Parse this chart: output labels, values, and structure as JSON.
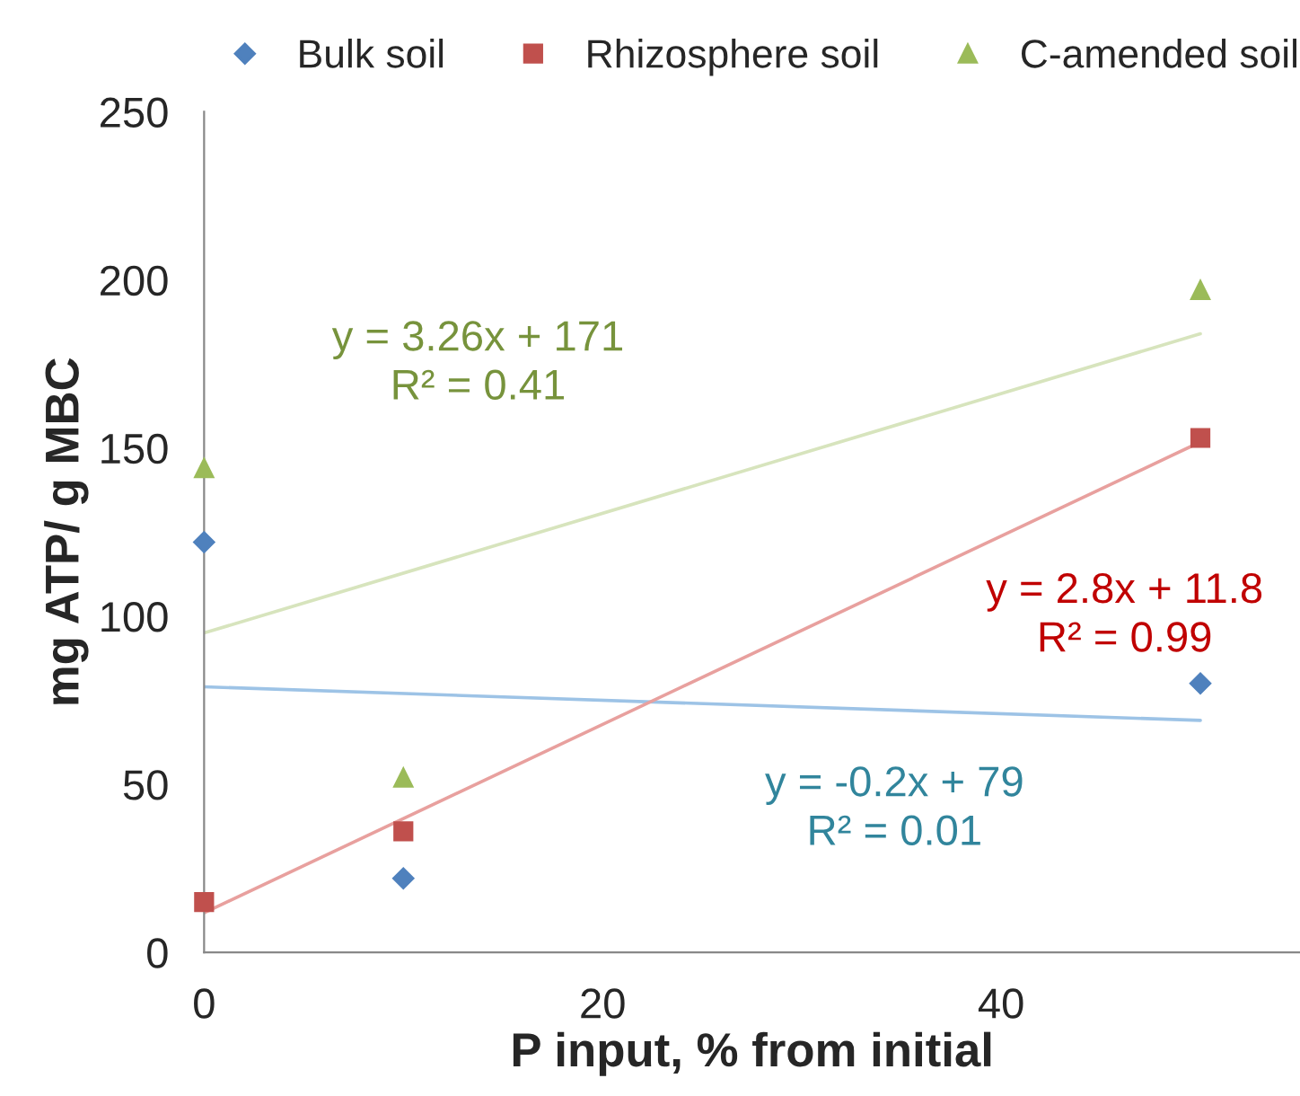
{
  "chart_data": {
    "type": "scatter",
    "xlabel": "P input, % from initial",
    "ylabel": "mg ATP/ g MBC",
    "xlim": [
      0,
      55
    ],
    "xticks": [
      0,
      20,
      40
    ],
    "ylim": [
      0,
      250
    ],
    "yticks": [
      0,
      50,
      100,
      150,
      200,
      250
    ],
    "grid": false,
    "legend": "top",
    "series": [
      {
        "name": "Bulk soil",
        "color": "#4f81bd",
        "marker": "diamond",
        "x": [
          0,
          10,
          50
        ],
        "values": [
          122,
          22,
          80
        ]
      },
      {
        "name": "Rhizosphere soil",
        "color": "#c0504d",
        "marker": "square",
        "x": [
          0,
          10,
          50
        ],
        "values": [
          15,
          36,
          153
        ]
      },
      {
        "name": "C-amended soil",
        "color": "#9bbb59",
        "marker": "triangle",
        "x": [
          0,
          10,
          50
        ],
        "values": [
          144,
          52,
          197
        ]
      },
      {
        "type": "line",
        "color": "#9dc3e6",
        "marker": "none",
        "x": [
          0,
          50
        ],
        "values": [
          79,
          69
        ]
      },
      {
        "type": "line",
        "color": "#e8a09e",
        "marker": "none",
        "x": [
          0,
          50
        ],
        "values": [
          11.8,
          151.8
        ]
      },
      {
        "type": "line",
        "color": "#d7e4bd",
        "marker": "none",
        "x": [
          0,
          50
        ],
        "values": [
          95,
          184
        ]
      }
    ],
    "annotations": [
      "y = 3.26x + 171\nR² = 0.41",
      "y = 2.8x + 11.8\nR² = 0.99",
      "y = -0.2x + 79\nR² = 0.01"
    ]
  }
}
